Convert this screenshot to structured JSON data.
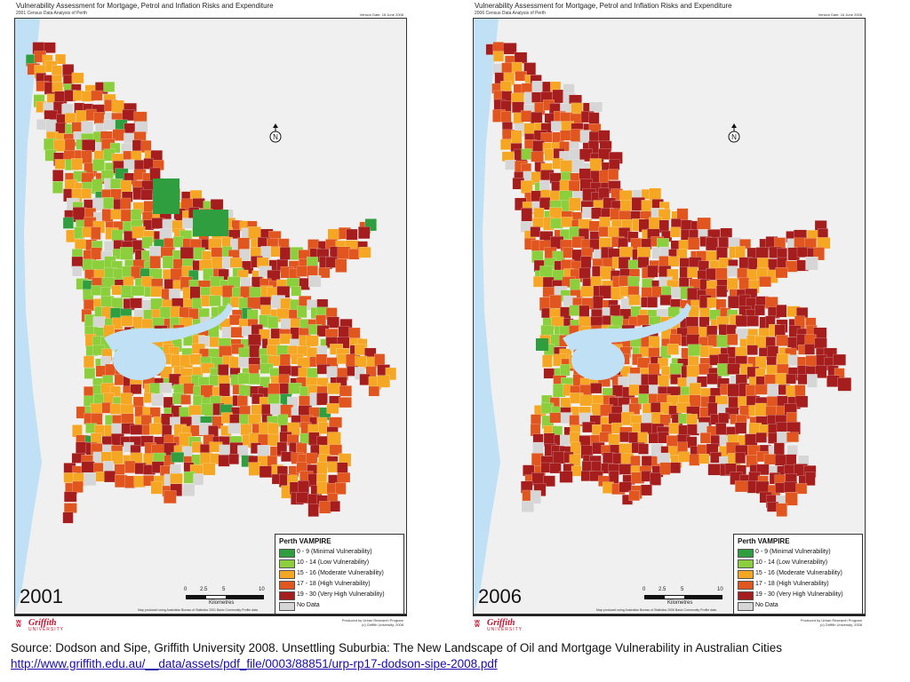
{
  "colors": {
    "minimal": "#2e9e3e",
    "low": "#8ccf3c",
    "moderate": "#f5a623",
    "high": "#e0561e",
    "very_high": "#a51d1d",
    "no_data": "#d6d6d6",
    "water": "#bfe0f5",
    "land": "#f0f0f0"
  },
  "panels": [
    {
      "title": "Vulnerability Assessment for Mortgage, Petrol and Inflation Risks and Expenditure",
      "subtitle": "2001 Census Data Analysis of Perth",
      "version": "Version Date: 16 June 2008",
      "year": "2001",
      "scale_ticks": [
        "0",
        "2.5",
        "5",
        "10"
      ],
      "scale_unit": "Kilometres",
      "scale_note": "Map produced using Australian Bureau of Statistics 2001 Basic Community Profile data",
      "produced_by": "Produced by Urban Research Program\n(c) Griffith University, 2008",
      "logo_name": "Griffith",
      "logo_sub": "UNIVERSITY"
    },
    {
      "title": "Vulnerability Assessment for Mortgage, Petrol and Inflation Risks and Expenditure",
      "subtitle": "2006 Census Data Analysis of Perth",
      "version": "Version Date: 16 June 2008",
      "year": "2006",
      "scale_ticks": [
        "0",
        "2.5",
        "5",
        "10"
      ],
      "scale_unit": "Kilometres",
      "scale_note": "Map produced using Australian Bureau of Statistics 2006 Basic Community Profile data",
      "produced_by": "Produced by Urban Research Program\n(c) Griffith University, 2008",
      "logo_name": "Griffith",
      "logo_sub": "UNIVERSITY"
    }
  ],
  "legend": {
    "title": "Perth VAMPIRE",
    "items": [
      {
        "label": "0 - 9 (Minimal Vulnerability)",
        "color": "#2e9e3e"
      },
      {
        "label": "10 - 14 (Low Vulnerability)",
        "color": "#8ccf3c"
      },
      {
        "label": "15 - 16 (Moderate Vulnerability)",
        "color": "#f5a623"
      },
      {
        "label": "17 - 18 (High Vulnerability)",
        "color": "#e0561e"
      },
      {
        "label": "19 - 30 (Very High Vulnerability)",
        "color": "#a51d1d"
      },
      {
        "label": "No Data",
        "color": "#d6d6d6"
      }
    ]
  },
  "north_label": "N",
  "source": {
    "text": "Source: Dodson and Sipe, Griffith University 2008. Unsettling Suburbia: The New Landscape of Oil and Mortgage Vulnerability in Australian Cities",
    "link": "http://www.griffith.edu.au/__data/assets/pdf_file/0003/88851/urp-rp17-dodson-sipe-2008.pdf"
  }
}
